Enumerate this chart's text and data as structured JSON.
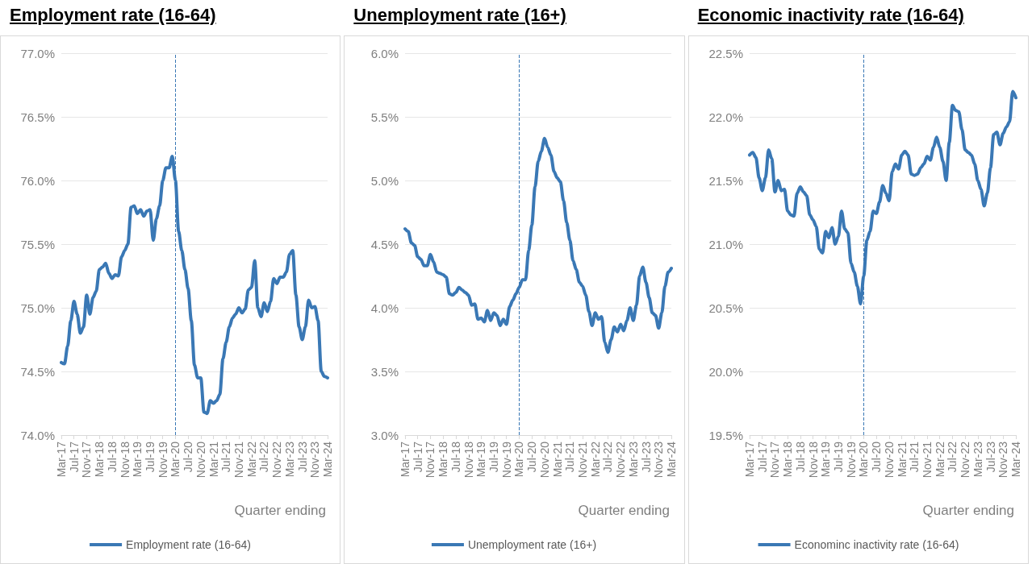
{
  "chart_data": [
    {
      "type": "line",
      "title": "Employment rate (16-64)",
      "xlabel": "Quarter ending",
      "categories": [
        "Mar-17",
        null,
        null,
        null,
        "Jul-17",
        null,
        null,
        null,
        "Nov-17",
        null,
        null,
        null,
        "Mar-18",
        null,
        null,
        null,
        "Jul-18",
        null,
        null,
        null,
        "Nov-18",
        null,
        null,
        null,
        "Mar-19",
        null,
        null,
        null,
        "Jul-19",
        null,
        null,
        null,
        "Nov-19",
        null,
        null,
        null,
        "Mar-20",
        null,
        null,
        null,
        "Jul-20",
        null,
        null,
        null,
        "Nov-20",
        null,
        null,
        null,
        "Mar-21",
        null,
        null,
        null,
        "Jul-21",
        null,
        null,
        null,
        "Nov-21",
        null,
        null,
        null,
        "Mar-22",
        null,
        null,
        null,
        "Jul-22",
        null,
        null,
        null,
        "Nov-22",
        null,
        null,
        null,
        "Mar-23",
        null,
        null,
        null,
        "Jul-23",
        null,
        null,
        null,
        "Nov-23",
        null,
        null,
        null,
        "Mar-24"
      ],
      "series": [
        {
          "name": "Employment rate (16-64)",
          "color": "#3a78b5",
          "values": [
            74.57,
            74.56,
            74.7,
            74.9,
            75.05,
            74.95,
            74.8,
            74.85,
            75.1,
            74.95,
            75.08,
            75.13,
            75.3,
            75.32,
            75.35,
            75.27,
            75.23,
            75.26,
            75.25,
            75.4,
            75.45,
            75.5,
            75.79,
            75.8,
            75.74,
            75.77,
            75.72,
            75.76,
            75.77,
            75.53,
            75.7,
            75.8,
            76.0,
            76.1,
            76.1,
            76.19,
            76.0,
            75.6,
            75.45,
            75.3,
            75.15,
            74.9,
            74.55,
            74.45,
            74.45,
            74.18,
            74.17,
            74.27,
            74.25,
            74.27,
            74.32,
            74.6,
            74.73,
            74.85,
            74.92,
            74.95,
            75.0,
            74.96,
            74.99,
            75.14,
            75.16,
            75.37,
            75.0,
            74.93,
            75.04,
            74.97,
            75.05,
            75.23,
            75.19,
            75.24,
            75.24,
            75.28,
            75.42,
            75.45,
            75.1,
            74.85,
            74.75,
            74.85,
            75.06,
            75.0,
            75.01,
            74.9,
            74.5,
            74.46,
            74.45
          ]
        }
      ],
      "ylim": [
        74,
        77
      ],
      "yticks": [
        {
          "value": 74,
          "label": "74.0%"
        },
        {
          "value": 74.5,
          "label": "74.5%"
        },
        {
          "value": 75,
          "label": "75.0%"
        },
        {
          "value": 75.5,
          "label": "75.5%"
        },
        {
          "value": 76,
          "label": "76.0%"
        },
        {
          "value": 76.5,
          "label": "76.5%"
        },
        {
          "value": 77,
          "label": "77.0%"
        }
      ],
      "ref_lines": [
        {
          "axis": "x",
          "value": "Mar-20",
          "color": "#3a78b5",
          "line_style": "dashed"
        }
      ],
      "grid": "y",
      "legend": "bottom",
      "marker": "none",
      "line_style": "solid"
    },
    {
      "type": "line",
      "title": "Unemployment rate (16+)",
      "xlabel": "Quarter ending",
      "categories": [
        "Mar-17",
        null,
        null,
        null,
        "Jul-17",
        null,
        null,
        null,
        "Nov-17",
        null,
        null,
        null,
        "Mar-18",
        null,
        null,
        null,
        "Jul-18",
        null,
        null,
        null,
        "Nov-18",
        null,
        null,
        null,
        "Mar-19",
        null,
        null,
        null,
        "Jul-19",
        null,
        null,
        null,
        "Nov-19",
        null,
        null,
        null,
        "Mar-20",
        null,
        null,
        null,
        "Jul-20",
        null,
        null,
        null,
        "Nov-20",
        null,
        null,
        null,
        "Mar-21",
        null,
        null,
        null,
        "Jul-21",
        null,
        null,
        null,
        "Nov-21",
        null,
        null,
        null,
        "Mar-22",
        null,
        null,
        null,
        "Jul-22",
        null,
        null,
        null,
        "Nov-22",
        null,
        null,
        null,
        "Mar-23",
        null,
        null,
        null,
        "Jul-23",
        null,
        null,
        null,
        "Nov-23",
        null,
        null,
        null,
        "Mar-24"
      ],
      "series": [
        {
          "name": "Unemployment rate (16+)",
          "color": "#3a78b5",
          "values": [
            4.62,
            4.6,
            4.51,
            4.49,
            4.4,
            4.38,
            4.33,
            4.33,
            4.42,
            4.36,
            4.28,
            4.27,
            4.26,
            4.24,
            4.11,
            4.1,
            4.12,
            4.16,
            4.14,
            4.12,
            4.1,
            4.02,
            4.03,
            3.91,
            3.92,
            3.89,
            3.98,
            3.9,
            3.96,
            3.94,
            3.86,
            3.91,
            3.87,
            4.01,
            4.06,
            4.11,
            4.16,
            4.22,
            4.22,
            4.45,
            4.65,
            4.95,
            5.15,
            5.23,
            5.33,
            5.26,
            5.2,
            5.07,
            5.02,
            4.99,
            4.84,
            4.67,
            4.53,
            4.37,
            4.3,
            4.2,
            4.17,
            4.1,
            3.97,
            3.86,
            3.96,
            3.91,
            3.93,
            3.73,
            3.65,
            3.75,
            3.85,
            3.81,
            3.87,
            3.82,
            3.9,
            4.0,
            3.9,
            4.02,
            4.25,
            4.32,
            4.2,
            4.08,
            3.96,
            3.94,
            3.84,
            3.96,
            4.17,
            4.28,
            4.31
          ]
        }
      ],
      "ylim": [
        3,
        6
      ],
      "yticks": [
        {
          "value": 3,
          "label": "3.0%"
        },
        {
          "value": 3.5,
          "label": "3.5%"
        },
        {
          "value": 4,
          "label": "4.0%"
        },
        {
          "value": 4.5,
          "label": "4.5%"
        },
        {
          "value": 5,
          "label": "5.0%"
        },
        {
          "value": 5.5,
          "label": "5.5%"
        },
        {
          "value": 6,
          "label": "6.0%"
        }
      ],
      "ref_lines": [
        {
          "axis": "x",
          "value": "Mar-20",
          "color": "#3a78b5",
          "line_style": "dashed"
        }
      ],
      "grid": "y",
      "legend": "bottom",
      "marker": "none",
      "line_style": "solid"
    },
    {
      "type": "line",
      "title": "Economic inactivity rate (16-64)",
      "xlabel": "Quarter ending",
      "categories": [
        "Mar-17",
        null,
        null,
        null,
        "Jul-17",
        null,
        null,
        null,
        "Nov-17",
        null,
        null,
        null,
        "Mar-18",
        null,
        null,
        null,
        "Jul-18",
        null,
        null,
        null,
        "Nov-18",
        null,
        null,
        null,
        "Mar-19",
        null,
        null,
        null,
        "Jul-19",
        null,
        null,
        null,
        "Nov-19",
        null,
        null,
        null,
        "Mar-20",
        null,
        null,
        null,
        "Jul-20",
        null,
        null,
        null,
        "Nov-20",
        null,
        null,
        null,
        "Mar-21",
        null,
        null,
        null,
        "Jul-21",
        null,
        null,
        null,
        "Nov-21",
        null,
        null,
        null,
        "Mar-22",
        null,
        null,
        null,
        "Jul-22",
        null,
        null,
        null,
        "Nov-22",
        null,
        null,
        null,
        "Mar-23",
        null,
        null,
        null,
        "Jul-23",
        null,
        null,
        null,
        "Nov-23",
        null,
        null,
        null,
        "Mar-24"
      ],
      "series": [
        {
          "name": "Econominc inactivity rate (16-64)",
          "color": "#3a78b5",
          "values": [
            21.7,
            21.72,
            21.68,
            21.52,
            21.42,
            21.52,
            21.74,
            21.67,
            21.41,
            21.5,
            21.42,
            21.43,
            21.26,
            21.23,
            21.22,
            21.4,
            21.45,
            21.41,
            21.38,
            21.23,
            21.19,
            21.14,
            20.96,
            20.93,
            21.1,
            21.05,
            21.13,
            21.0,
            21.06,
            21.26,
            21.12,
            21.09,
            20.85,
            20.78,
            20.67,
            20.53,
            20.75,
            21.03,
            21.1,
            21.26,
            21.24,
            21.33,
            21.46,
            21.4,
            21.34,
            21.57,
            21.63,
            21.59,
            21.7,
            21.73,
            21.7,
            21.55,
            21.54,
            21.55,
            21.6,
            21.63,
            21.69,
            21.66,
            21.76,
            21.84,
            21.76,
            21.65,
            21.5,
            21.8,
            22.09,
            22.05,
            22.04,
            21.9,
            21.74,
            21.72,
            21.7,
            21.63,
            21.5,
            21.43,
            21.3,
            21.4,
            21.6,
            21.86,
            21.88,
            21.78,
            21.87,
            21.92,
            21.96,
            22.2,
            22.15
          ]
        }
      ],
      "ylim": [
        19.5,
        22.5
      ],
      "yticks": [
        {
          "value": 19.5,
          "label": "19.5%"
        },
        {
          "value": 20,
          "label": "20.0%"
        },
        {
          "value": 20.5,
          "label": "20.5%"
        },
        {
          "value": 21,
          "label": "21.0%"
        },
        {
          "value": 21.5,
          "label": "21.5%"
        },
        {
          "value": 22,
          "label": "22.0%"
        },
        {
          "value": 22.5,
          "label": "22.5%"
        }
      ],
      "ref_lines": [
        {
          "axis": "x",
          "value": "Mar-20",
          "color": "#3a78b5",
          "line_style": "dashed"
        }
      ],
      "grid": "y",
      "legend": "bottom",
      "marker": "none",
      "line_style": "solid"
    }
  ]
}
